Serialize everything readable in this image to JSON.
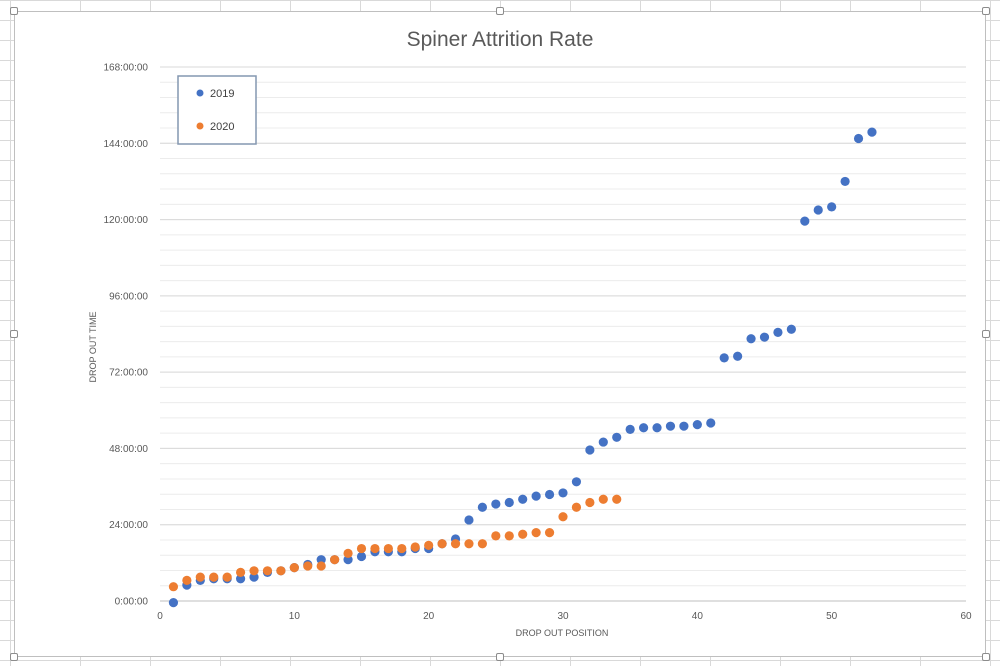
{
  "chart_data": {
    "type": "scatter",
    "title": "Spiner Attrition Rate",
    "xlabel": "DROP OUT POSITION",
    "ylabel": "DROP OUT TIME",
    "xlim": [
      0,
      60
    ],
    "ylim": [
      0,
      168
    ],
    "x_ticks": [
      0,
      10,
      20,
      30,
      40,
      50,
      60
    ],
    "y_ticks": [
      {
        "hours": 0,
        "label": "0:00:00"
      },
      {
        "hours": 24,
        "label": "24:00:00"
      },
      {
        "hours": 48,
        "label": "48:00:00"
      },
      {
        "hours": 72,
        "label": "72:00:00"
      },
      {
        "hours": 96,
        "label": "96:00:00"
      },
      {
        "hours": 120,
        "label": "120:00:00"
      },
      {
        "hours": 144,
        "label": "144:00:00"
      },
      {
        "hours": 168,
        "label": "168:00:00"
      }
    ],
    "y_unit": "hours",
    "grid": true,
    "legend_position": "top-left",
    "series": [
      {
        "name": "2019",
        "color": "#4472c4",
        "x": [
          1,
          2,
          3,
          4,
          5,
          6,
          7,
          8,
          9,
          10,
          11,
          12,
          13,
          14,
          15,
          16,
          17,
          18,
          19,
          20,
          21,
          22,
          23,
          24,
          25,
          26,
          27,
          28,
          29,
          30,
          31,
          32,
          33,
          34,
          35,
          36,
          37,
          38,
          39,
          40,
          41,
          42,
          43,
          44,
          45,
          46,
          47,
          48,
          49,
          50,
          51,
          52,
          53
        ],
        "y": [
          -0.5,
          5,
          6.5,
          7,
          7,
          7,
          7.5,
          9,
          9.5,
          10.5,
          11.5,
          13,
          13,
          13,
          14,
          15.5,
          15.5,
          15.5,
          16.5,
          16.5,
          18,
          19.5,
          25.5,
          29.5,
          30.5,
          31,
          32,
          33,
          33.5,
          34,
          37.5,
          47.5,
          50,
          51.5,
          54,
          54.5,
          54.5,
          55,
          55,
          55.5,
          56,
          76.5,
          77,
          82.5,
          83,
          84.5,
          85.5,
          119.5,
          123,
          124,
          132,
          145.5,
          147.5
        ]
      },
      {
        "name": "2020",
        "color": "#ed7d31",
        "x": [
          1,
          2,
          3,
          4,
          5,
          6,
          7,
          8,
          9,
          10,
          11,
          12,
          13,
          14,
          15,
          16,
          17,
          18,
          19,
          20,
          21,
          22,
          23,
          24,
          25,
          26,
          27,
          28,
          29,
          30,
          31,
          32,
          33,
          34
        ],
        "y": [
          4.5,
          6.5,
          7.5,
          7.5,
          7.5,
          9,
          9.5,
          9.5,
          9.5,
          10.5,
          11,
          11,
          13,
          15,
          16.5,
          16.5,
          16.5,
          16.5,
          17,
          17.5,
          18,
          18,
          18,
          18,
          20.5,
          20.5,
          21,
          21.5,
          21.5,
          26.5,
          29.5,
          31,
          32,
          32
        ]
      }
    ]
  }
}
